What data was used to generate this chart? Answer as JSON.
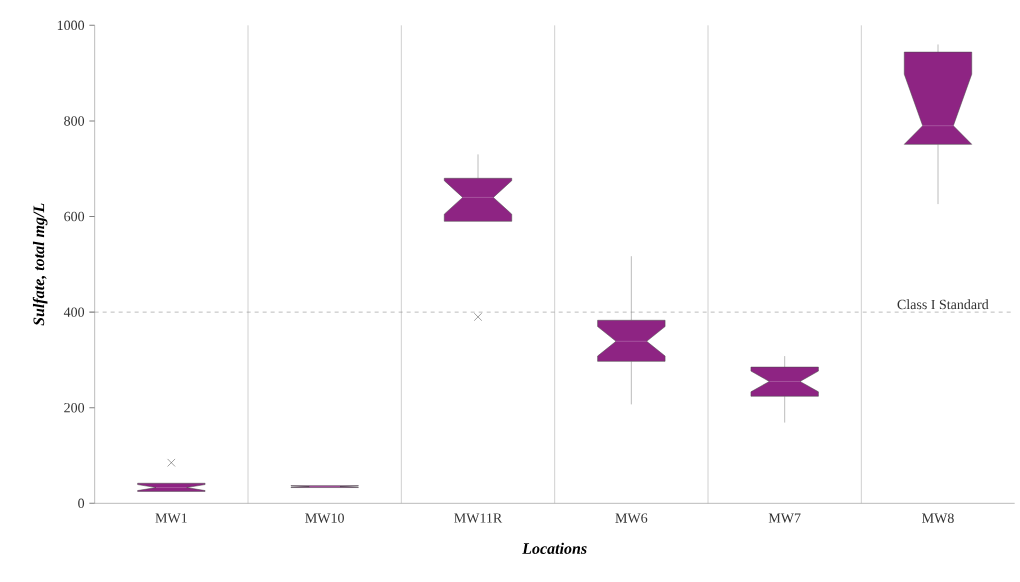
{
  "chart_data": {
    "type": "box",
    "xlabel": "Locations",
    "ylabel": "Sulfate, total mg/L",
    "categories": [
      "MW1",
      "MW10",
      "MW11R",
      "MW6",
      "MW7",
      "MW8"
    ],
    "boxes": [
      {
        "low": 25,
        "q1": 25,
        "median": 33,
        "q3": 42,
        "high": 42,
        "outliers": [
          85
        ]
      },
      {
        "low": 33,
        "q1": 33,
        "median": 35,
        "q3": 37,
        "high": 37
      },
      {
        "low": 590,
        "q1": 590,
        "median": 640,
        "q3": 680,
        "high": 730,
        "outliers": [
          390
        ]
      },
      {
        "low": 207,
        "q1": 297,
        "median": 339,
        "q3": 383,
        "high": 517
      },
      {
        "low": 169,
        "q1": 224,
        "median": 255,
        "q3": 285,
        "high": 308
      },
      {
        "low": 626,
        "q1": 751,
        "median": 790,
        "q3": 944,
        "high": 960
      }
    ],
    "color": "#8e2483",
    "ylim": [
      0,
      1000
    ],
    "yticks": [
      0,
      200,
      400,
      600,
      800,
      1000
    ],
    "grid": "x",
    "ref_lines": [
      {
        "axis": "y",
        "value": 400,
        "label": "Class I Standard",
        "line_style": "dashed"
      }
    ]
  }
}
